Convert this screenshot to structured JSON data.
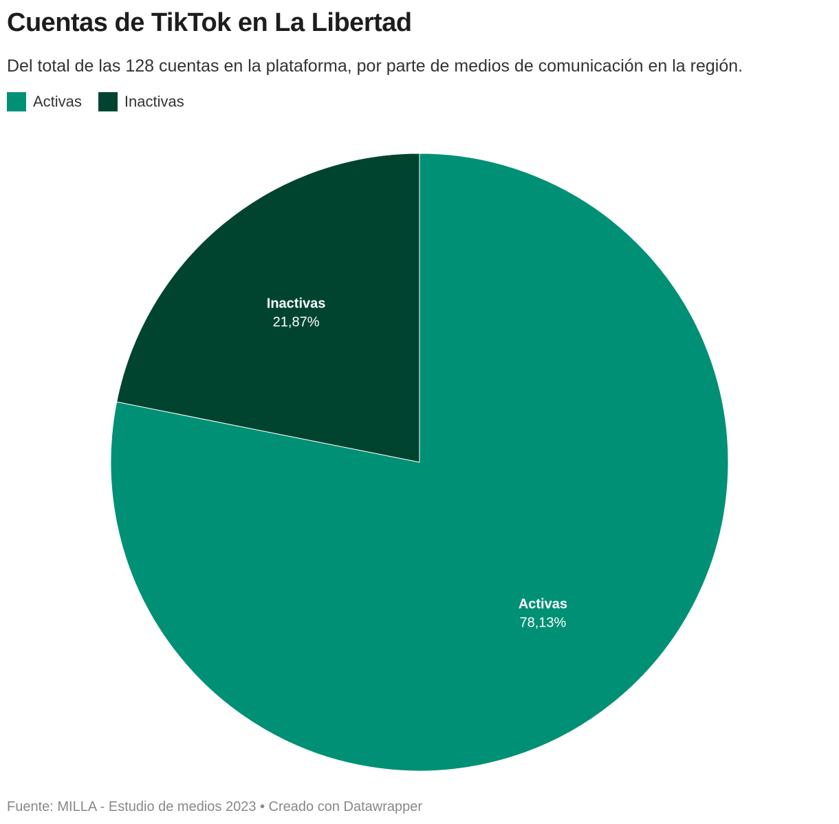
{
  "title": "Cuentas de TikTok en La Libertad",
  "subtitle": "Del total de las 128 cuentas en la plataforma, por parte de medios de comunicación en la región.",
  "footer": "Fuente: MILLA - Estudio de medios 2023 • Creado con Datawrapper",
  "chart_data": {
    "type": "pie",
    "title": "Cuentas de TikTok en La Libertad",
    "legend_placement": "top-left",
    "slices": [
      {
        "name": "Activas",
        "value": 78.13,
        "label": "78,13%",
        "color": "#009075"
      },
      {
        "name": "Inactivas",
        "value": 21.87,
        "label": "21,87%",
        "color": "#004430"
      }
    ]
  }
}
